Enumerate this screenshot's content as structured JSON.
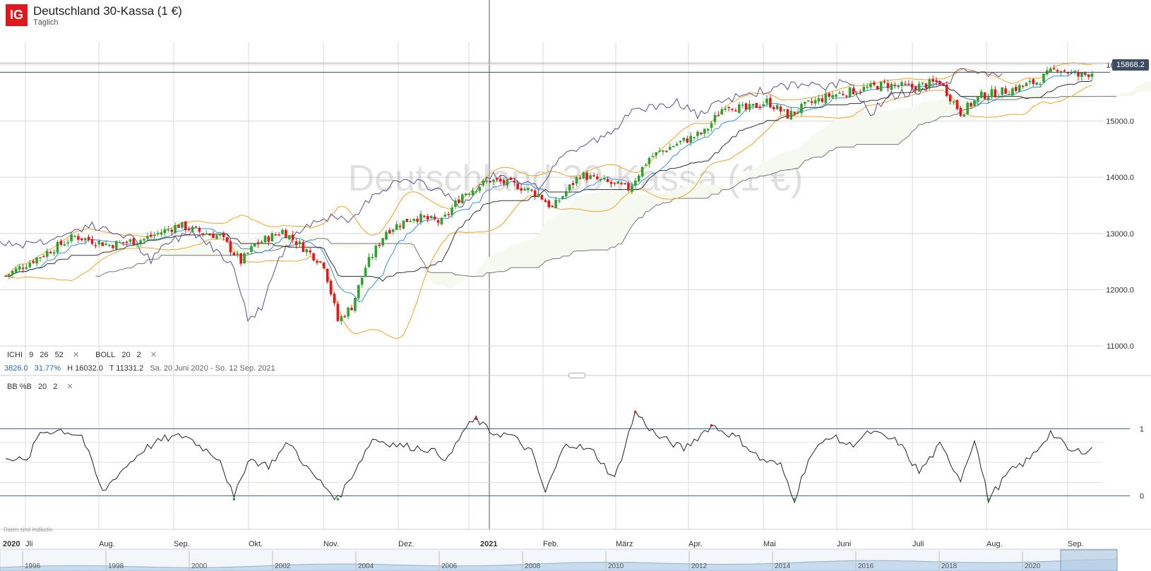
{
  "header": {
    "logo": "IG",
    "title": "Deutschland 30-Kassa (1 €)",
    "interval": "Täglich",
    "watermark": "Deutschland 30-Kassa (1 €)"
  },
  "price_tag": "15868.2",
  "indicators": {
    "ichi": {
      "name": "ICHI",
      "p1": "9",
      "p2": "26",
      "p3": "52"
    },
    "boll": {
      "name": "BOLL",
      "p1": "20",
      "p2": "2"
    },
    "stats": {
      "change": "3826.0",
      "change_pct": "31.77%",
      "high": "H 16032.0",
      "low": "T 11331.2",
      "range": "Sa. 20 Juni 2020 - So. 12 Sep. 2021"
    },
    "bbpb": {
      "name": "BB %B",
      "p1": "20",
      "p2": "2"
    }
  },
  "disclaimer": "Daten sind indikativ",
  "colors": {
    "up": "#2ea12e",
    "down": "#e0181d",
    "upper_band": "#f2a42a",
    "cloud": "#f5f9f0",
    "tenkan": "#3a8fd8",
    "kijun": "#333333",
    "chikou": "#5a4f8f",
    "pct_line": "#222222",
    "ref_line": "#3d6b9e"
  },
  "chart_data": [
    {
      "type": "candlestick",
      "title": "Deutschland 30-Kassa (1 €)",
      "ylim": [
        10500,
        16400
      ],
      "y_ticks": [
        "11000.0",
        "12000.0",
        "13000.0",
        "14000.0",
        "15000.0",
        "16000.0"
      ],
      "x_labels": [
        "2020",
        "Jli",
        "Aug.",
        "Sep.",
        "Okt.",
        "Nov.",
        "Dez.",
        "2021",
        "Feb.",
        "März",
        "Apr.",
        "Mai",
        "Juni",
        "Juli",
        "Aug.",
        "Sep."
      ],
      "close_path": [
        {
          "t": 0,
          "v": 12250
        },
        {
          "t": 10,
          "v": 12600
        },
        {
          "t": 20,
          "v": 12950
        },
        {
          "t": 30,
          "v": 12800
        },
        {
          "t": 40,
          "v": 12900
        },
        {
          "t": 50,
          "v": 13150
        },
        {
          "t": 55,
          "v": 13050
        },
        {
          "t": 62,
          "v": 12950
        },
        {
          "t": 68,
          "v": 12500
        },
        {
          "t": 72,
          "v": 12800
        },
        {
          "t": 80,
          "v": 13050
        },
        {
          "t": 86,
          "v": 12750
        },
        {
          "t": 92,
          "v": 12450
        },
        {
          "t": 96,
          "v": 11450
        },
        {
          "t": 100,
          "v": 11700
        },
        {
          "t": 104,
          "v": 12400
        },
        {
          "t": 110,
          "v": 13050
        },
        {
          "t": 118,
          "v": 13300
        },
        {
          "t": 126,
          "v": 13200
        },
        {
          "t": 132,
          "v": 13700
        },
        {
          "t": 140,
          "v": 13950
        },
        {
          "t": 148,
          "v": 13850
        },
        {
          "t": 154,
          "v": 13700
        },
        {
          "t": 158,
          "v": 13450
        },
        {
          "t": 166,
          "v": 14050
        },
        {
          "t": 174,
          "v": 13900
        },
        {
          "t": 180,
          "v": 13800
        },
        {
          "t": 186,
          "v": 14350
        },
        {
          "t": 194,
          "v": 14600
        },
        {
          "t": 202,
          "v": 14800
        },
        {
          "t": 208,
          "v": 15300
        },
        {
          "t": 214,
          "v": 15200
        },
        {
          "t": 220,
          "v": 15350
        },
        {
          "t": 226,
          "v": 15100
        },
        {
          "t": 232,
          "v": 15300
        },
        {
          "t": 238,
          "v": 15450
        },
        {
          "t": 246,
          "v": 15550
        },
        {
          "t": 254,
          "v": 15650
        },
        {
          "t": 262,
          "v": 15600
        },
        {
          "t": 270,
          "v": 15700
        },
        {
          "t": 276,
          "v": 15150
        },
        {
          "t": 282,
          "v": 15450
        },
        {
          "t": 290,
          "v": 15550
        },
        {
          "t": 298,
          "v": 15700
        },
        {
          "t": 304,
          "v": 15950
        },
        {
          "t": 310,
          "v": 15800
        },
        {
          "t": 314,
          "v": 15868
        }
      ],
      "high": 16032.0,
      "low": 11331.2,
      "last": 15868.2
    },
    {
      "type": "line",
      "title": "BB %B",
      "ylim": [
        -0.5,
        1.5
      ],
      "y_ticks": [
        "1",
        "0"
      ],
      "pct_path": [
        {
          "t": 0,
          "v": 0.6
        },
        {
          "t": 6,
          "v": 0.5
        },
        {
          "t": 10,
          "v": 0.95
        },
        {
          "t": 16,
          "v": 0.98
        },
        {
          "t": 22,
          "v": 0.9
        },
        {
          "t": 28,
          "v": 0.05
        },
        {
          "t": 32,
          "v": 0.3
        },
        {
          "t": 40,
          "v": 0.7
        },
        {
          "t": 46,
          "v": 0.85
        },
        {
          "t": 52,
          "v": 0.9
        },
        {
          "t": 56,
          "v": 0.75
        },
        {
          "t": 62,
          "v": 0.55
        },
        {
          "t": 66,
          "v": -0.05
        },
        {
          "t": 70,
          "v": 0.55
        },
        {
          "t": 76,
          "v": 0.45
        },
        {
          "t": 82,
          "v": 0.8
        },
        {
          "t": 88,
          "v": 0.35
        },
        {
          "t": 92,
          "v": 0.15
        },
        {
          "t": 96,
          "v": -0.05
        },
        {
          "t": 100,
          "v": 0.3
        },
        {
          "t": 106,
          "v": 0.85
        },
        {
          "t": 114,
          "v": 0.75
        },
        {
          "t": 122,
          "v": 0.7
        },
        {
          "t": 128,
          "v": 0.55
        },
        {
          "t": 132,
          "v": 0.95
        },
        {
          "t": 136,
          "v": 1.15
        },
        {
          "t": 140,
          "v": 0.95
        },
        {
          "t": 146,
          "v": 0.9
        },
        {
          "t": 152,
          "v": 0.65
        },
        {
          "t": 156,
          "v": 0.05
        },
        {
          "t": 162,
          "v": 0.8
        },
        {
          "t": 170,
          "v": 0.65
        },
        {
          "t": 176,
          "v": 0.25
        },
        {
          "t": 182,
          "v": 1.25
        },
        {
          "t": 188,
          "v": 0.9
        },
        {
          "t": 196,
          "v": 0.7
        },
        {
          "t": 204,
          "v": 1.05
        },
        {
          "t": 212,
          "v": 0.85
        },
        {
          "t": 218,
          "v": 0.55
        },
        {
          "t": 224,
          "v": 0.45
        },
        {
          "t": 228,
          "v": -0.05
        },
        {
          "t": 232,
          "v": 0.55
        },
        {
          "t": 238,
          "v": 0.9
        },
        {
          "t": 244,
          "v": 0.75
        },
        {
          "t": 250,
          "v": 0.95
        },
        {
          "t": 258,
          "v": 0.8
        },
        {
          "t": 264,
          "v": 0.35
        },
        {
          "t": 270,
          "v": 0.75
        },
        {
          "t": 276,
          "v": 0.25
        },
        {
          "t": 280,
          "v": 0.85
        },
        {
          "t": 284,
          "v": -0.05
        },
        {
          "t": 290,
          "v": 0.35
        },
        {
          "t": 296,
          "v": 0.55
        },
        {
          "t": 302,
          "v": 0.95
        },
        {
          "t": 308,
          "v": 0.65
        },
        {
          "t": 314,
          "v": 0.7
        }
      ]
    }
  ],
  "navigator": {
    "years": [
      "1996",
      "1998",
      "2000",
      "2002",
      "2004",
      "2006",
      "2008",
      "2010",
      "2012",
      "2014",
      "2016",
      "2018",
      "2020"
    ]
  }
}
